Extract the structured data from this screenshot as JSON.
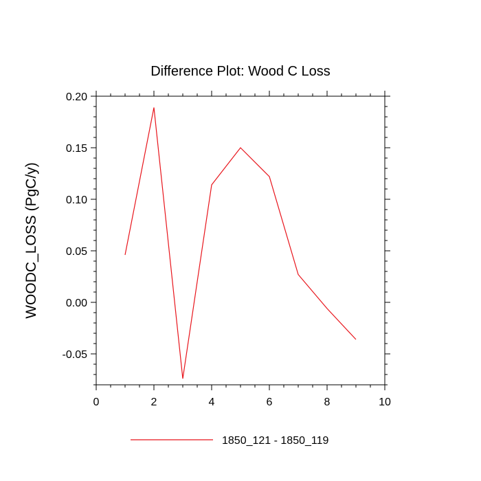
{
  "chart_data": {
    "type": "line",
    "title": "Difference Plot: Wood C Loss",
    "xlabel": "",
    "ylabel": "WOODC_LOSS  (PgC/y)",
    "xlim": [
      0,
      10
    ],
    "ylim": [
      -0.08,
      0.2
    ],
    "x_ticks": [
      0,
      2,
      4,
      6,
      8,
      10
    ],
    "y_ticks": [
      -0.05,
      0.0,
      0.05,
      0.1,
      0.15,
      0.2
    ],
    "x_tick_labels": [
      "0",
      "2",
      "4",
      "6",
      "8",
      "10"
    ],
    "y_tick_labels": [
      "-0.05",
      "0.00",
      "0.05",
      "0.10",
      "0.15",
      "0.20"
    ],
    "grid": false,
    "legend_position": "bottom-center",
    "series": [
      {
        "name": "1850_121 - 1850_119",
        "color": "#e8141b",
        "x": [
          1,
          2,
          3,
          4,
          5,
          6,
          7,
          8,
          9
        ],
        "y": [
          0.046,
          0.189,
          -0.074,
          0.114,
          0.15,
          0.122,
          0.027,
          -0.006,
          -0.036
        ]
      }
    ]
  }
}
